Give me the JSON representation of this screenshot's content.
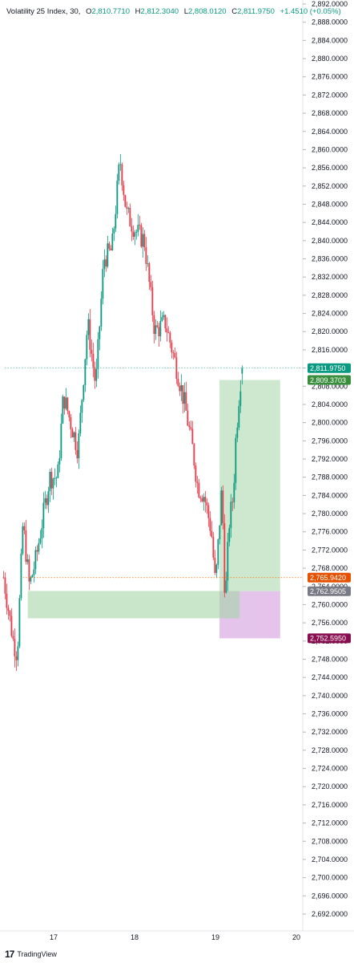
{
  "legend": {
    "title": "Volatility 25 Index, 30,",
    "o_key": "O",
    "o_val": "2,810.7710",
    "h_key": "H",
    "h_val": "2,812.3040",
    "l_key": "L",
    "l_val": "2,808.0120",
    "c_key": "C",
    "c_val": "2,811.9750",
    "change": "+1.4510 (+0.05%)"
  },
  "footer": {
    "brand": "TradingView"
  },
  "colors": {
    "up": "#089981",
    "down": "#f23645",
    "target_zone": "#a5d6a7",
    "stop_zone": "#ce93d8",
    "zone_rect": "#a5d6a7",
    "entry_line": "#ff6d00",
    "price_label_bg": "#089981",
    "target_label_bg": "#388e3c",
    "entry_label_bg": "#e65100",
    "stop_label_bg": "#880e4f",
    "gray_label_bg": "#787b86"
  },
  "chart_data": {
    "type": "candlestick",
    "ylim": [
      2690,
      2892
    ],
    "y_ticks": [
      "2,692.0000",
      "2,696.0000",
      "2,700.0000",
      "2,704.0000",
      "2,708.0000",
      "2,712.0000",
      "2,716.0000",
      "2,720.0000",
      "2,724.0000",
      "2,728.0000",
      "2,732.0000",
      "2,736.0000",
      "2,740.0000",
      "2,744.0000",
      "2,748.0000",
      "2,752.0000",
      "2,756.0000",
      "2,760.0000",
      "2,764.0000",
      "2,768.0000",
      "2,772.0000",
      "2,776.0000",
      "2,780.0000",
      "2,784.0000",
      "2,788.0000",
      "2,792.0000",
      "2,796.0000",
      "2,800.0000",
      "2,804.0000",
      "2,808.0000",
      "2,812.0000",
      "2,816.0000",
      "2,820.0000",
      "2,824.0000",
      "2,828.0000",
      "2,832.0000",
      "2,836.0000",
      "2,840.0000",
      "2,844.0000",
      "2,848.0000",
      "2,852.0000",
      "2,856.0000",
      "2,860.0000",
      "2,864.0000",
      "2,868.0000",
      "2,872.0000",
      "2,876.0000",
      "2,880.0000",
      "2,884.0000",
      "2,888.0000",
      "2,892.0000"
    ],
    "x_ticks": [
      {
        "label": "17",
        "day": 17
      },
      {
        "label": "18",
        "day": 18
      },
      {
        "label": "19",
        "day": 19
      },
      {
        "label": "20",
        "day": 20
      }
    ],
    "x_range_days": [
      16.38,
      19.98
    ],
    "path": [
      [
        16.38,
        2766
      ],
      [
        16.5,
        2752
      ],
      [
        16.55,
        2749
      ],
      [
        16.62,
        2778
      ],
      [
        16.7,
        2764
      ],
      [
        16.78,
        2770
      ],
      [
        16.95,
        2788
      ],
      [
        17.05,
        2788
      ],
      [
        17.12,
        2806
      ],
      [
        17.3,
        2794
      ],
      [
        17.42,
        2822
      ],
      [
        17.52,
        2808
      ],
      [
        17.62,
        2836
      ],
      [
        17.72,
        2838
      ],
      [
        17.82,
        2858
      ],
      [
        17.9,
        2846
      ],
      [
        18.02,
        2842
      ],
      [
        18.12,
        2840
      ],
      [
        18.25,
        2820
      ],
      [
        18.38,
        2822
      ],
      [
        18.52,
        2812
      ],
      [
        18.62,
        2804
      ],
      [
        18.72,
        2794
      ],
      [
        18.78,
        2786
      ],
      [
        18.86,
        2784
      ],
      [
        18.95,
        2776
      ],
      [
        19.0,
        2764
      ],
      [
        19.08,
        2786
      ],
      [
        19.12,
        2760
      ],
      [
        19.17,
        2778
      ],
      [
        19.22,
        2784
      ],
      [
        19.25,
        2796
      ],
      [
        19.3,
        2808
      ],
      [
        19.33,
        2812
      ]
    ],
    "candle_count": 150,
    "last": {
      "open": 2810.771,
      "high": 2812.304,
      "low": 2808.012,
      "close": 2811.975
    },
    "price_labels": [
      {
        "text": "2,811.9750",
        "value": 2811.975,
        "color_key": "price_label_bg"
      },
      {
        "text": "2,809.3703",
        "value": 2809.3703,
        "color_key": "target_label_bg"
      },
      {
        "text": "2,765.9420",
        "value": 2765.942,
        "color_key": "entry_label_bg"
      },
      {
        "text": "2,762.9505",
        "value": 2762.9505,
        "color_key": "gray_label_bg"
      },
      {
        "text": "2,752.5950",
        "value": 2752.595,
        "color_key": "stop_label_bg"
      }
    ],
    "long_position": {
      "entry": 2762.9505,
      "target": 2809.3703,
      "stop": 2752.595,
      "start_day": 19.05,
      "end_day": 19.8
    },
    "zone": {
      "low": 2757.0,
      "high": 2763.0,
      "start_day": 16.68,
      "end_day": 19.3
    },
    "entry_line": 2765.942,
    "last_price_line": 2811.975
  }
}
